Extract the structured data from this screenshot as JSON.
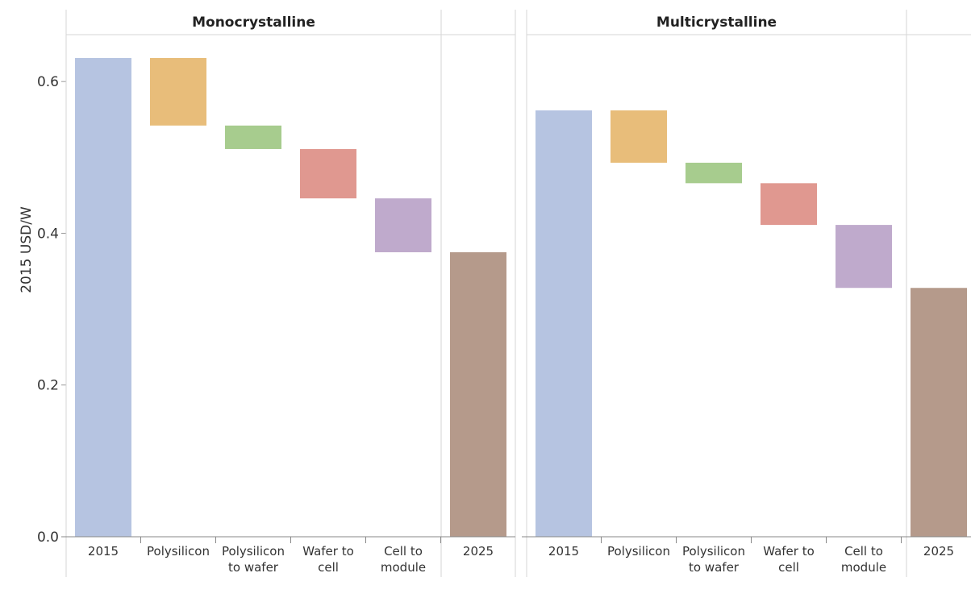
{
  "chart_data": {
    "type": "bar",
    "subtype": "waterfall",
    "ylabel": "2015 USD/W",
    "ylim": [
      0,
      0.66
    ],
    "yticks": [
      0.0,
      0.2,
      0.4,
      0.6
    ],
    "ytick_labels": [
      "0.0",
      "0.2",
      "0.4",
      "0.6"
    ],
    "grid": false,
    "categories": [
      {
        "lines": [
          "2015"
        ]
      },
      {
        "lines": [
          "Polysilicon"
        ]
      },
      {
        "lines": [
          "Polysilicon",
          "to wafer"
        ]
      },
      {
        "lines": [
          "Wafer to",
          "cell"
        ]
      },
      {
        "lines": [
          "Cell to",
          "module"
        ]
      },
      {
        "lines": [
          "2025"
        ]
      }
    ],
    "colors": [
      "#b6c4e1",
      "#e8bd7a",
      "#a7cc8e",
      "#e09890",
      "#bfaacc",
      "#b59a8b"
    ],
    "panels": [
      {
        "title": "Monocrystalline",
        "bars": [
          {
            "low": 0,
            "high": 0.631
          },
          {
            "low": 0.542,
            "high": 0.631
          },
          {
            "low": 0.511,
            "high": 0.542
          },
          {
            "low": 0.446,
            "high": 0.511
          },
          {
            "low": 0.375,
            "high": 0.446
          },
          {
            "low": 0,
            "high": 0.375
          }
        ]
      },
      {
        "title": "Multicrystalline",
        "bars": [
          {
            "low": 0,
            "high": 0.562
          },
          {
            "low": 0.493,
            "high": 0.562
          },
          {
            "low": 0.466,
            "high": 0.493
          },
          {
            "low": 0.411,
            "high": 0.466
          },
          {
            "low": 0.328,
            "high": 0.411
          },
          {
            "low": 0,
            "high": 0.328
          }
        ]
      }
    ]
  }
}
